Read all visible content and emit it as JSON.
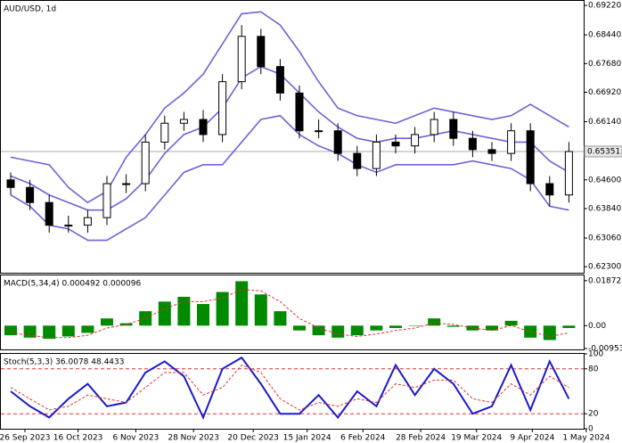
{
  "chart_data": [
    {
      "type": "candlestick",
      "title": "AUD/USD, 1d",
      "open": [
        0.646,
        0.644,
        0.64,
        0.634,
        0.634,
        0.636,
        0.645,
        0.645,
        0.656,
        0.661,
        0.662,
        0.658,
        0.672,
        0.684,
        0.676,
        0.669,
        0.659,
        0.659,
        0.653,
        0.649,
        0.656,
        0.655,
        0.658,
        0.662,
        0.657,
        0.654,
        0.653,
        0.659,
        0.645,
        0.642
      ],
      "high": [
        0.648,
        0.646,
        0.642,
        0.6365,
        0.638,
        0.647,
        0.6475,
        0.658,
        0.663,
        0.664,
        0.6645,
        0.674,
        0.687,
        0.686,
        0.678,
        0.671,
        0.662,
        0.661,
        0.655,
        0.658,
        0.658,
        0.66,
        0.664,
        0.664,
        0.659,
        0.656,
        0.661,
        0.661,
        0.647,
        0.656
      ],
      "low": [
        0.642,
        0.638,
        0.632,
        0.632,
        0.632,
        0.634,
        0.6425,
        0.643,
        0.654,
        0.659,
        0.656,
        0.656,
        0.67,
        0.674,
        0.667,
        0.657,
        0.657,
        0.651,
        0.647,
        0.647,
        0.653,
        0.653,
        0.656,
        0.655,
        0.652,
        0.651,
        0.651,
        0.643,
        0.639,
        0.64
      ],
      "close": [
        0.644,
        0.64,
        0.634,
        0.634,
        0.636,
        0.645,
        0.645,
        0.656,
        0.661,
        0.662,
        0.658,
        0.672,
        0.684,
        0.676,
        0.669,
        0.659,
        0.659,
        0.653,
        0.649,
        0.656,
        0.655,
        0.658,
        0.662,
        0.657,
        0.654,
        0.653,
        0.659,
        0.645,
        0.642,
        0.65351
      ],
      "series": [
        {
          "color": "#6f63d8",
          "values": [
            0.652,
            0.651,
            0.65,
            0.644,
            0.64,
            0.643,
            0.652,
            0.658,
            0.665,
            0.669,
            0.674,
            0.682,
            0.69,
            0.6905,
            0.687,
            0.68,
            0.672,
            0.665,
            0.663,
            0.662,
            0.661,
            0.663,
            0.665,
            0.664,
            0.663,
            0.662,
            0.663,
            0.666,
            0.663,
            0.66
          ]
        },
        {
          "color": "#6f63d8",
          "values": [
            0.647,
            0.645,
            0.642,
            0.64,
            0.638,
            0.638,
            0.641,
            0.646,
            0.653,
            0.658,
            0.66,
            0.665,
            0.673,
            0.676,
            0.674,
            0.669,
            0.664,
            0.66,
            0.657,
            0.656,
            0.657,
            0.657,
            0.658,
            0.659,
            0.658,
            0.657,
            0.656,
            0.656,
            0.651,
            0.648
          ]
        },
        {
          "color": "#6f63d8",
          "values": [
            0.642,
            0.639,
            0.634,
            0.633,
            0.63,
            0.63,
            0.633,
            0.636,
            0.642,
            0.648,
            0.65,
            0.65,
            0.656,
            0.662,
            0.663,
            0.658,
            0.655,
            0.653,
            0.65,
            0.648,
            0.65,
            0.65,
            0.65,
            0.65,
            0.651,
            0.65,
            0.649,
            0.646,
            0.639,
            0.638
          ]
        }
      ],
      "ylim": [
        0.6214,
        0.6934
      ],
      "yticks": [
        {
          "value": 0.6922,
          "label": "0.69220"
        },
        {
          "value": 0.6844,
          "label": "0.68440"
        },
        {
          "value": 0.6768,
          "label": "0.67680"
        },
        {
          "value": 0.6692,
          "label": "0.66920"
        },
        {
          "value": 0.6614,
          "label": "0.66140"
        },
        {
          "value": 0.646,
          "label": "0.64600"
        },
        {
          "value": 0.6384,
          "label": "0.63840"
        },
        {
          "value": 0.6306,
          "label": "0.63060"
        },
        {
          "value": 0.623,
          "label": "0.62300"
        }
      ],
      "last_price": 0.65351
    },
    {
      "type": "bar",
      "title": "MACD(5,34,4) 0.000492 0.000096",
      "values": [
        -0.004,
        -0.005,
        -0.0055,
        -0.0045,
        -0.003,
        0.003,
        0.001,
        0.006,
        0.01,
        0.012,
        0.009,
        0.014,
        0.0185,
        0.013,
        0.006,
        -0.002,
        -0.004,
        -0.005,
        -0.004,
        -0.002,
        -0.001,
        0.0,
        0.003,
        -0.0005,
        -0.002,
        -0.002,
        0.002,
        -0.005,
        -0.006,
        -0.001
      ],
      "color": "#008a00",
      "series": [
        {
          "color": "#e03030",
          "dashed": true,
          "values": [
            -0.003,
            -0.004,
            -0.005,
            -0.005,
            -0.004,
            -0.001,
            0.0005,
            0.003,
            0.007,
            0.01,
            0.01,
            0.0115,
            0.015,
            0.0145,
            0.01,
            0.003,
            -0.001,
            -0.0035,
            -0.0045,
            -0.0035,
            -0.002,
            -0.001,
            0.001,
            0.0005,
            -0.001,
            -0.002,
            0.0,
            -0.0025,
            -0.0045,
            -0.003
          ]
        }
      ],
      "ylim": [
        -0.0099,
        0.0209
      ],
      "yticks": [
        0.018725,
        {
          "value": 0,
          "label": "0.00"
        },
        -0.009534
      ]
    },
    {
      "type": "line",
      "title": "Stoch(5,3,3) 36.0078 48.4433",
      "series": [
        {
          "color": "#1a1acd",
          "values": [
            50,
            30,
            15,
            40,
            60,
            30,
            35,
            75,
            90,
            70,
            15,
            80,
            95,
            60,
            20,
            20,
            45,
            15,
            50,
            30,
            85,
            45,
            80,
            60,
            20,
            30,
            85,
            25,
            90,
            40
          ]
        },
        {
          "color": "#e03030",
          "dashed": true,
          "values": [
            55,
            40,
            25,
            30,
            45,
            40,
            35,
            55,
            75,
            75,
            45,
            55,
            85,
            75,
            40,
            25,
            35,
            30,
            40,
            35,
            60,
            55,
            65,
            65,
            40,
            35,
            60,
            45,
            70,
            55
          ]
        }
      ],
      "levels": [
        80,
        20
      ],
      "ylim": [
        0,
        100
      ],
      "yticks": [
        100,
        80,
        20,
        0
      ],
      "xticks": [
        {
          "value": 0.74,
          "label": "26 Sep 2023"
        },
        {
          "value": 3.5,
          "label": "16 Oct 2023"
        },
        {
          "value": 6.5,
          "label": "6 Nov 2023"
        },
        {
          "value": 9.5,
          "label": "28 Nov 2023"
        },
        {
          "value": 12.6,
          "label": "20 Dec 2023"
        },
        {
          "value": 15.4,
          "label": "15 Jan 2024"
        },
        {
          "value": 18.3,
          "label": "6 Feb 2024"
        },
        {
          "value": 21.3,
          "label": "28 Feb 2024"
        },
        {
          "value": 24.2,
          "label": "19 Mar 2024"
        },
        {
          "value": 27.1,
          "label": "9 Apr 2024"
        },
        {
          "value": 29.9,
          "label": "1 May 2024"
        }
      ]
    }
  ]
}
